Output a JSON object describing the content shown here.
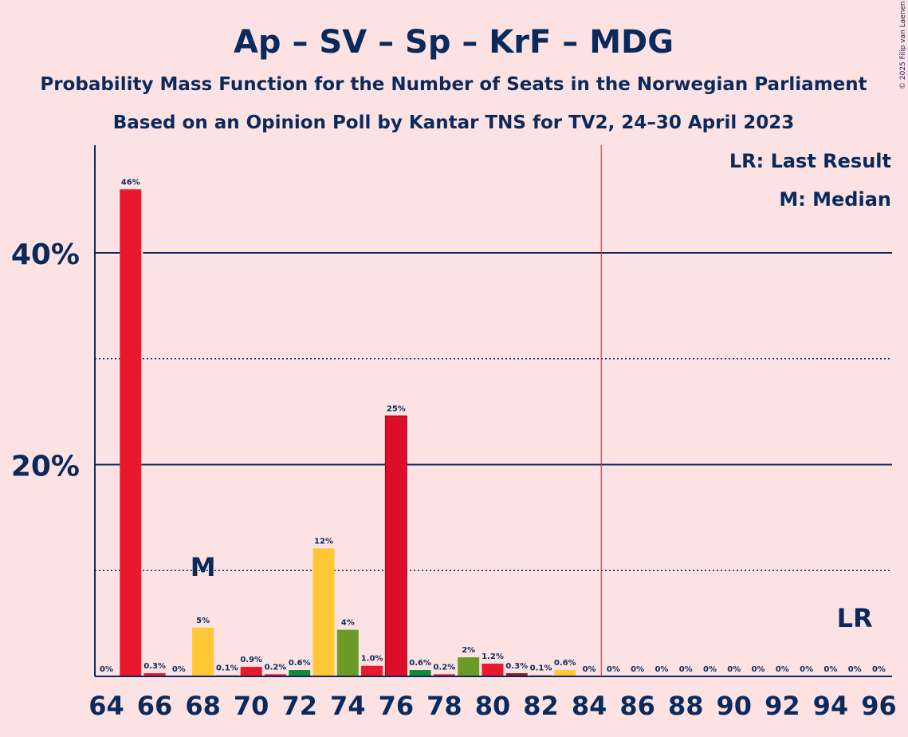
{
  "chart_data": {
    "type": "bar",
    "title": "Ap – SV – Sp – KrF – MDG",
    "subtitle1": "Probability Mass Function for the Number of Seats in the Norwegian Parliament",
    "subtitle2": "Based on an Opinion Poll by Kantar TNS for TV2, 24–30 April 2023",
    "copyright": "© 2025 Filip van Laenen",
    "legend": {
      "lr": "LR: Last Result",
      "median": "M: Median",
      "placement": "top-right"
    },
    "median_label": "M",
    "lr_label": "LR",
    "median_seat": 68,
    "last_result_seat": 85,
    "ylim": [
      0,
      50
    ],
    "y_major_ticks": [
      {
        "value": 20,
        "label": "20%"
      },
      {
        "value": 40,
        "label": "40%"
      }
    ],
    "y_minor_gridlines": [
      10,
      30
    ],
    "x_tick_labels": [
      "64",
      "66",
      "68",
      "70",
      "72",
      "74",
      "76",
      "78",
      "80",
      "82",
      "84",
      "86",
      "88",
      "90",
      "92",
      "94",
      "96"
    ],
    "bars": [
      {
        "seat": 64,
        "value": 0,
        "label": "0%",
        "color": "#E8192C"
      },
      {
        "seat": 65,
        "value": 46,
        "label": "46%",
        "color": "#E8192C"
      },
      {
        "seat": 66,
        "value": 0.3,
        "label": "0.3%",
        "color": "#E8192C"
      },
      {
        "seat": 67,
        "value": 0,
        "label": "0%",
        "color": "#E8192C"
      },
      {
        "seat": 68,
        "value": 4.6,
        "label": "5%",
        "color": "#FFC736"
      },
      {
        "seat": 69,
        "value": 0.1,
        "label": "0.1%",
        "color": "#E8192C"
      },
      {
        "seat": 70,
        "value": 0.9,
        "label": "0.9%",
        "color": "#E8192C"
      },
      {
        "seat": 71,
        "value": 0.2,
        "label": "0.2%",
        "color": "#E8192C"
      },
      {
        "seat": 72,
        "value": 0.6,
        "label": "0.6%",
        "color": "#118A3C"
      },
      {
        "seat": 73,
        "value": 12.1,
        "label": "12%",
        "color": "#FFC736"
      },
      {
        "seat": 74,
        "value": 4.4,
        "label": "4%",
        "color": "#6B9A26"
      },
      {
        "seat": 75,
        "value": 1.0,
        "label": "1.0%",
        "color": "#E8192C"
      },
      {
        "seat": 76,
        "value": 24.6,
        "label": "25%",
        "color": "#DE0E2A"
      },
      {
        "seat": 77,
        "value": 0.6,
        "label": "0.6%",
        "color": "#118A3C"
      },
      {
        "seat": 78,
        "value": 0.2,
        "label": "0.2%",
        "color": "#E8192C"
      },
      {
        "seat": 79,
        "value": 1.8,
        "label": "2%",
        "color": "#6B9A26"
      },
      {
        "seat": 80,
        "value": 1.2,
        "label": "1.2%",
        "color": "#E8192C"
      },
      {
        "seat": 81,
        "value": 0.3,
        "label": "0.3%",
        "color": "#8E1C24"
      },
      {
        "seat": 82,
        "value": 0.1,
        "label": "0.1%",
        "color": "#E8192C"
      },
      {
        "seat": 83,
        "value": 0.6,
        "label": "0.6%",
        "color": "#FFC736"
      },
      {
        "seat": 84,
        "value": 0,
        "label": "0%",
        "color": "#E8192C"
      },
      {
        "seat": 85,
        "value": 0,
        "label": "0%",
        "color": "#E8192C"
      },
      {
        "seat": 86,
        "value": 0,
        "label": "0%",
        "color": "#E8192C"
      },
      {
        "seat": 87,
        "value": 0,
        "label": "0%",
        "color": "#E8192C"
      },
      {
        "seat": 88,
        "value": 0,
        "label": "0%",
        "color": "#E8192C"
      },
      {
        "seat": 89,
        "value": 0,
        "label": "0%",
        "color": "#E8192C"
      },
      {
        "seat": 90,
        "value": 0,
        "label": "0%",
        "color": "#E8192C"
      },
      {
        "seat": 91,
        "value": 0,
        "label": "0%",
        "color": "#E8192C"
      },
      {
        "seat": 92,
        "value": 0,
        "label": "0%",
        "color": "#E8192C"
      },
      {
        "seat": 93,
        "value": 0,
        "label": "0%",
        "color": "#E8192C"
      },
      {
        "seat": 94,
        "value": 0,
        "label": "0%",
        "color": "#E8192C"
      },
      {
        "seat": 95,
        "value": 0,
        "label": "0%",
        "color": "#E8192C"
      },
      {
        "seat": 96,
        "value": 0,
        "label": "0%",
        "color": "#E8192C"
      }
    ],
    "colors": {
      "text": "#0A2A5C",
      "background": "#FDE2E4",
      "last_result_line": "#E8192C"
    }
  }
}
